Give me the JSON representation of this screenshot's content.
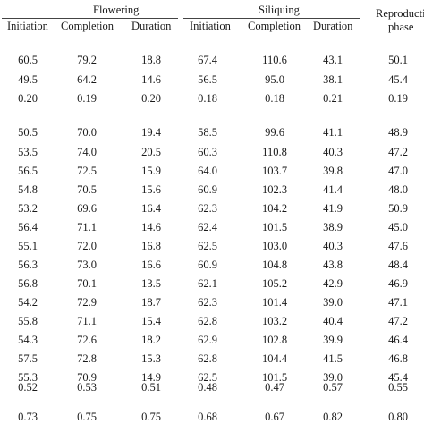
{
  "table": {
    "group_headers": {
      "flowering": "Flowering",
      "siliquing": "Siliquing",
      "reproductive_line1": "Reproductiv",
      "reproductive_line2": "phase"
    },
    "sub_headers": [
      "Initiation",
      "Completion",
      "Duration",
      "Initiation",
      "Completion",
      "Duration"
    ],
    "rows": [
      [
        "60.5",
        "79.2",
        "18.8",
        "67.4",
        "110.6",
        "43.1",
        "50.1"
      ],
      [
        "49.5",
        "64.2",
        "14.6",
        "56.5",
        "95.0",
        "38.1",
        "45.4"
      ],
      [
        "0.20",
        "0.19",
        "0.20",
        "0.18",
        "0.18",
        "0.21",
        "0.19"
      ],
      [
        "50.5",
        "70.0",
        "19.4",
        "58.5",
        "99.6",
        "41.1",
        "48.9"
      ],
      [
        "53.5",
        "74.0",
        "20.5",
        "60.3",
        "110.8",
        "40.3",
        "47.2"
      ],
      [
        "56.5",
        "72.5",
        "15.9",
        "64.0",
        "103.7",
        "39.8",
        "47.0"
      ],
      [
        "54.8",
        "70.5",
        "15.6",
        "60.9",
        "102.3",
        "41.4",
        "48.0"
      ],
      [
        "53.2",
        "69.6",
        "16.4",
        "62.3",
        "104.2",
        "41.9",
        "50.9"
      ],
      [
        "56.4",
        "71.1",
        "14.6",
        "62.4",
        "101.5",
        "38.9",
        "45.0"
      ],
      [
        "55.1",
        "72.0",
        "16.8",
        "62.5",
        "103.0",
        "40.3",
        "47.6"
      ],
      [
        "56.3",
        "73.0",
        "16.6",
        "60.9",
        "104.8",
        "43.8",
        "48.4"
      ],
      [
        "56.8",
        "70.1",
        "13.5",
        "62.1",
        "105.2",
        "42.9",
        "46.9"
      ],
      [
        "54.2",
        "72.9",
        "18.7",
        "62.3",
        "101.4",
        "39.0",
        "47.1"
      ],
      [
        "55.8",
        "71.1",
        "15.4",
        "62.8",
        "103.2",
        "40.4",
        "47.2"
      ],
      [
        "54.3",
        "72.6",
        "18.2",
        "62.9",
        "102.8",
        "39.9",
        "46.4"
      ],
      [
        "57.5",
        "72.8",
        "15.3",
        "62.8",
        "104.4",
        "41.5",
        "46.8"
      ],
      [
        "55.3",
        "70.9",
        "14.9",
        "62.5",
        "101.5",
        "39.0",
        "45.4"
      ],
      [
        "0.52",
        "0.53",
        "0.51",
        "0.48",
        "0.47",
        "0.57",
        "0.55"
      ],
      [
        "0.73",
        "0.75",
        "0.75",
        "0.68",
        "0.67",
        "0.82",
        "0.80"
      ]
    ]
  }
}
